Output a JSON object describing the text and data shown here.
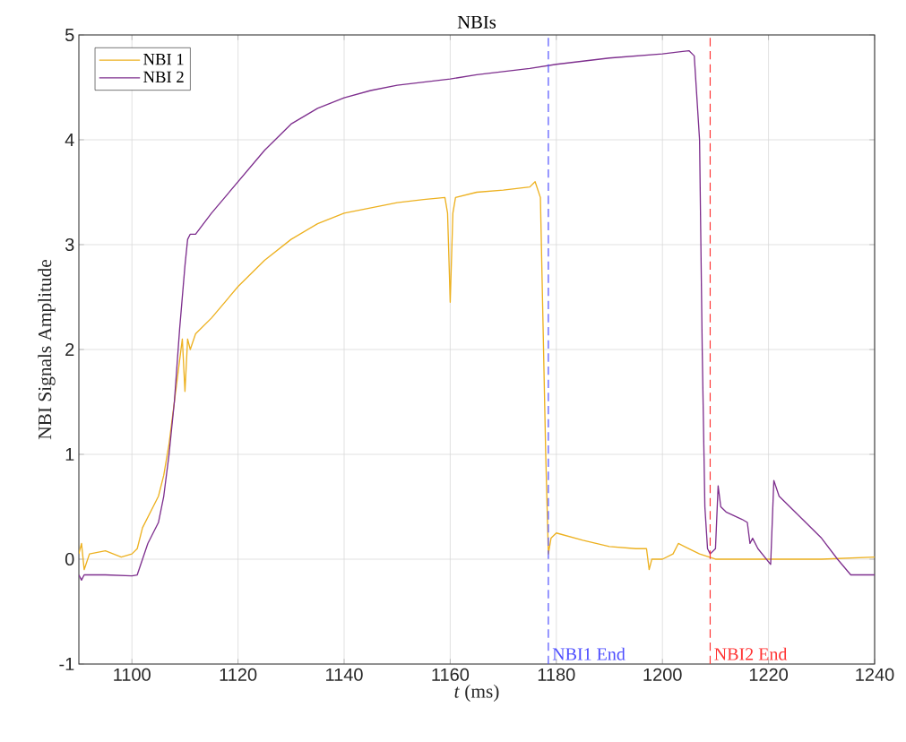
{
  "chart_data": {
    "type": "line",
    "title": "NBIs",
    "xlabel": "*t* (ms)",
    "ylabel": "NBI Signals Amplitude",
    "xlim": [
      1090,
      1240
    ],
    "xticks": [
      1100,
      1120,
      1140,
      1160,
      1180,
      1200,
      1220,
      1240
    ],
    "ylim": [
      -1,
      5
    ],
    "yticks": [
      -1,
      0,
      1,
      2,
      3,
      4,
      5
    ],
    "grid": true,
    "legend": "top left",
    "marker": "none",
    "line_style": "solid",
    "series": [
      {
        "name": "NBI 1",
        "color": "#edb120",
        "x": [
          1090,
          1090.5,
          1091,
          1092,
          1095,
          1098,
          1100,
          1101,
          1102,
          1103,
          1104,
          1105,
          1106,
          1107,
          1108,
          1109,
          1109.5,
          1110,
          1110.5,
          1111,
          1112,
          1115,
          1120,
          1125,
          1130,
          1135,
          1140,
          1145,
          1150,
          1155,
          1159,
          1159.5,
          1160,
          1160.5,
          1161,
          1165,
          1170,
          1175,
          1176,
          1177,
          1178,
          1178.5,
          1179,
          1180,
          1185,
          1190,
          1195,
          1197,
          1197.5,
          1198,
          1200,
          1202,
          1203,
          1205,
          1207,
          1210,
          1220,
          1230,
          1240
        ],
        "values": [
          0.05,
          0.15,
          -0.1,
          0.05,
          0.08,
          0.02,
          0.05,
          0.1,
          0.3,
          0.4,
          0.5,
          0.6,
          0.8,
          1.1,
          1.5,
          1.9,
          2.1,
          1.6,
          2.1,
          2.0,
          2.15,
          2.3,
          2.6,
          2.85,
          3.05,
          3.2,
          3.3,
          3.35,
          3.4,
          3.43,
          3.45,
          3.3,
          2.45,
          3.3,
          3.45,
          3.5,
          3.52,
          3.55,
          3.6,
          3.45,
          1.0,
          0.05,
          0.2,
          0.25,
          0.18,
          0.12,
          0.1,
          0.1,
          -0.1,
          0.0,
          0.0,
          0.05,
          0.15,
          0.1,
          0.05,
          0.0,
          0.0,
          0.0,
          0.02
        ]
      },
      {
        "name": "NBI 2",
        "color": "#7e2f8e",
        "x": [
          1090,
          1090.5,
          1091,
          1095,
          1100,
          1101,
          1102,
          1103,
          1104,
          1105,
          1106,
          1107,
          1108,
          1109,
          1110,
          1110.5,
          1111,
          1112,
          1115,
          1120,
          1125,
          1130,
          1135,
          1140,
          1145,
          1150,
          1155,
          1160,
          1165,
          1170,
          1175,
          1180,
          1185,
          1190,
          1195,
          1200,
          1205,
          1206,
          1207,
          1207.5,
          1208,
          1208.5,
          1209,
          1210,
          1210.5,
          1211,
          1212,
          1215,
          1216,
          1216.5,
          1217,
          1218,
          1220.4,
          1221,
          1222,
          1225,
          1230,
          1233,
          1235.5,
          1240
        ],
        "values": [
          -0.15,
          -0.2,
          -0.15,
          -0.15,
          -0.16,
          -0.15,
          0.0,
          0.15,
          0.25,
          0.35,
          0.6,
          1.0,
          1.5,
          2.2,
          2.8,
          3.05,
          3.1,
          3.1,
          3.3,
          3.6,
          3.9,
          4.15,
          4.3,
          4.4,
          4.47,
          4.52,
          4.55,
          4.58,
          4.62,
          4.65,
          4.68,
          4.72,
          4.75,
          4.78,
          4.8,
          4.82,
          4.85,
          4.8,
          4.0,
          2.0,
          0.5,
          0.1,
          0.05,
          0.1,
          0.7,
          0.5,
          0.45,
          0.38,
          0.35,
          0.15,
          0.2,
          0.1,
          -0.05,
          0.75,
          0.6,
          0.45,
          0.2,
          0.0,
          -0.15,
          -0.15
        ]
      }
    ],
    "ref_lines": [
      {
        "axis": "x",
        "value": 1178.5,
        "label": "NBI1 End",
        "color": "#4d4dff",
        "line_style": "dashed"
      },
      {
        "axis": "x",
        "value": 1209,
        "label": "NBI2 End",
        "color": "#ff3333",
        "line_style": "dashed"
      }
    ]
  }
}
